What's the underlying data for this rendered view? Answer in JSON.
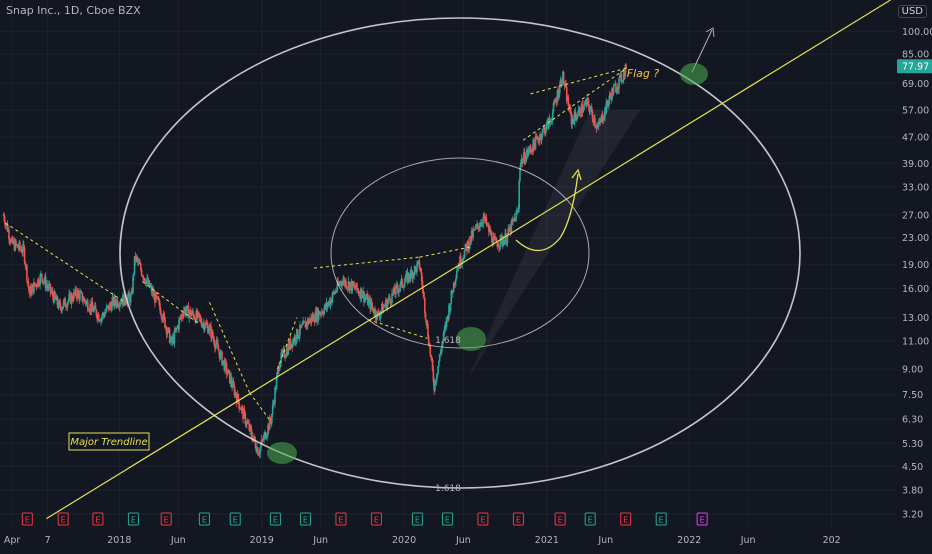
{
  "header": {
    "title": "Snap Inc., 1D, Cboe BZX",
    "currency": "USD"
  },
  "colors": {
    "background": "#131722",
    "grid": "#1e222d",
    "axis_text": "#b2b5be",
    "up_candle": "#26a69a",
    "down_candle": "#ef5350",
    "trendline": "#e6e050",
    "circle": "#d9d9d9",
    "highlight": "#4caf50",
    "price_tag": "#26a69a",
    "earnings": "#f23645",
    "dividend_like": "#22ab94",
    "upcoming": "#e040fb"
  },
  "chart_data": {
    "type": "candlestick",
    "title": "Snap Inc., 1D, Cboe BZX",
    "yscale": "log",
    "ylim": [
      2.9,
      125
    ],
    "y_ticks": [
      3.2,
      3.8,
      4.5,
      5.3,
      6.3,
      7.5,
      9.0,
      11.0,
      13.0,
      16.0,
      19.0,
      23.0,
      27.0,
      33.0,
      39.0,
      47.0,
      57.0,
      69.0,
      85.0,
      100.0
    ],
    "y_tick_labels": [
      "3.20",
      "3.80",
      "4.50",
      "5.30",
      "6.30",
      "7.50",
      "9.00",
      "11.00",
      "13.00",
      "16.00",
      "19.00",
      "23.00",
      "27.00",
      "33.00",
      "39.00",
      "47.00",
      "57.00",
      "69.00",
      "85.00",
      "100.00"
    ],
    "last_price": 77.97,
    "last_price_label": "77.97",
    "x_ticks": [
      "Apr",
      "7",
      "2018",
      "Jun",
      "2019",
      "Jun",
      "2020",
      "Jun",
      "2021",
      "Jun",
      "2022",
      "Jun",
      "202"
    ],
    "price_path": [
      [
        "2017-03-10",
        27.0
      ],
      [
        "2017-04-01",
        22.0
      ],
      [
        "2017-05-01",
        21.0
      ],
      [
        "2017-05-15",
        15.5
      ],
      [
        "2017-06-15",
        17.5
      ],
      [
        "2017-08-01",
        14.0
      ],
      [
        "2017-09-15",
        15.5
      ],
      [
        "2017-11-15",
        13.0
      ],
      [
        "2017-12-15",
        14.5
      ],
      [
        "2018-02-01",
        15.0
      ],
      [
        "2018-02-10",
        20.0
      ],
      [
        "2018-03-15",
        16.5
      ],
      [
        "2018-04-15",
        14.0
      ],
      [
        "2018-05-15",
        10.8
      ],
      [
        "2018-06-15",
        13.8
      ],
      [
        "2018-07-20",
        13.0
      ],
      [
        "2018-08-20",
        12.0
      ],
      [
        "2018-10-10",
        8.5
      ],
      [
        "2018-11-15",
        6.5
      ],
      [
        "2018-12-24",
        5.0
      ],
      [
        "2019-01-25",
        6.3
      ],
      [
        "2019-02-15",
        9.5
      ],
      [
        "2019-03-20",
        11.0
      ],
      [
        "2019-04-25",
        12.5
      ],
      [
        "2019-06-15",
        14.0
      ],
      [
        "2019-07-25",
        17.0
      ],
      [
        "2019-09-15",
        15.5
      ],
      [
        "2019-10-25",
        13.2
      ],
      [
        "2019-12-15",
        16.0
      ],
      [
        "2020-02-10",
        19.0
      ],
      [
        "2020-03-18",
        8.0
      ],
      [
        "2020-04-15",
        12.0
      ],
      [
        "2020-05-15",
        18.5
      ],
      [
        "2020-06-25",
        23.5
      ],
      [
        "2020-07-22",
        26.5
      ],
      [
        "2020-08-20",
        22.0
      ],
      [
        "2020-09-20",
        23.0
      ],
      [
        "2020-10-20",
        28.0
      ],
      [
        "2020-10-23",
        39.0
      ],
      [
        "2020-12-01",
        45.0
      ],
      [
        "2021-01-10",
        53.0
      ],
      [
        "2021-02-10",
        73.0
      ],
      [
        "2021-03-05",
        53.0
      ],
      [
        "2021-04-15",
        60.0
      ],
      [
        "2021-05-12",
        50.0
      ],
      [
        "2021-06-15",
        64.0
      ],
      [
        "2021-07-15",
        73.0
      ],
      [
        "2021-07-23",
        77.97
      ]
    ],
    "events_row": {
      "earnings_label": "E",
      "markers": [
        {
          "date": "2017-05-10",
          "kind": "earnings"
        },
        {
          "date": "2017-08-10",
          "kind": "earnings"
        },
        {
          "date": "2017-11-07",
          "kind": "earnings"
        },
        {
          "date": "2018-02-06",
          "kind": "dividend_like"
        },
        {
          "date": "2018-05-01",
          "kind": "earnings"
        },
        {
          "date": "2018-08-07",
          "kind": "dividend_like"
        },
        {
          "date": "2018-10-25",
          "kind": "dividend_like"
        },
        {
          "date": "2019-02-05",
          "kind": "dividend_like"
        },
        {
          "date": "2019-04-23",
          "kind": "dividend_like"
        },
        {
          "date": "2019-07-23",
          "kind": "earnings"
        },
        {
          "date": "2019-10-22",
          "kind": "earnings"
        },
        {
          "date": "2020-02-04",
          "kind": "dividend_like"
        },
        {
          "date": "2020-04-21",
          "kind": "dividend_like"
        },
        {
          "date": "2020-07-21",
          "kind": "earnings"
        },
        {
          "date": "2020-10-20",
          "kind": "earnings"
        },
        {
          "date": "2021-02-04",
          "kind": "earnings"
        },
        {
          "date": "2021-04-22",
          "kind": "dividend_like"
        },
        {
          "date": "2021-07-22",
          "kind": "earnings"
        },
        {
          "date": "2021-10-21",
          "kind": "dividend_like"
        },
        {
          "date": "2022-02-03",
          "kind": "upcoming"
        }
      ]
    },
    "annotations": {
      "trendline_label": "Major Trendline",
      "flag_label": "Flag ?",
      "fib_inner_label": "1.618",
      "fib_outer_label": "1.618"
    }
  }
}
